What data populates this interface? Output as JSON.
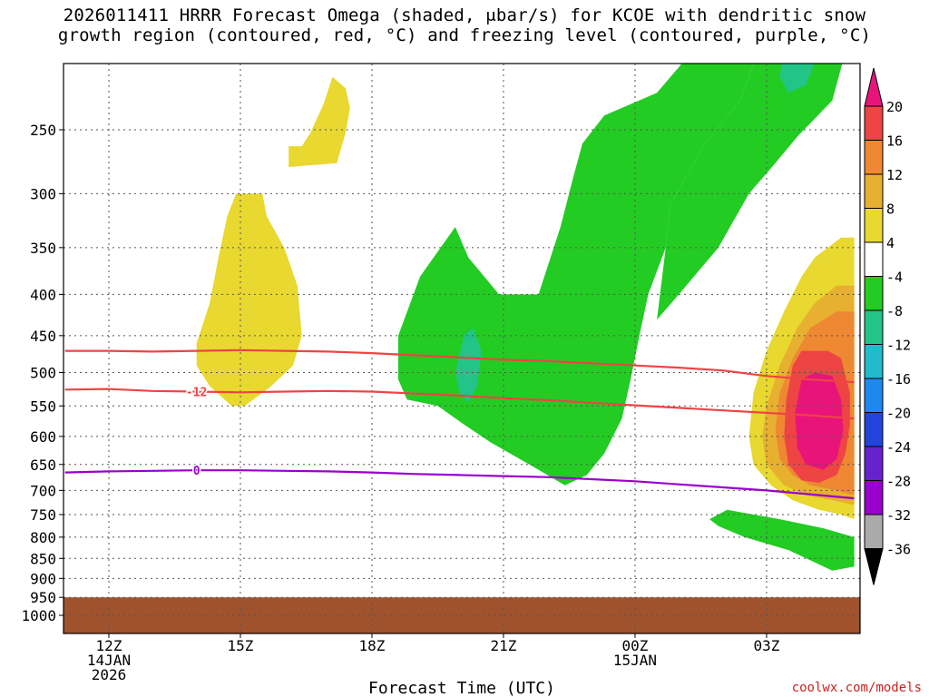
{
  "title": {
    "line1": "2026011411 HRRR Forecast Omega (shaded, μbar/s) for KCOE with dendritic snow",
    "line2": "growth region (contoured, red, °C) and freezing level (contoured, purple, °C)"
  },
  "credit": "coolwx.com/models",
  "chart_data": {
    "type": "heatmap",
    "title": "2026011411 HRRR Forecast Omega (shaded, μbar/s) for KCOE with dendritic snow growth region (contoured, red, °C) and freezing level (contoured, purple, °C)",
    "xlabel": "Forecast Time (UTC)",
    "ylabel": "",
    "y_axis": {
      "scale": "log-pressure",
      "units": "mb",
      "range": [
        1000,
        200
      ],
      "reversed": true
    },
    "x_axis": {
      "units": "hours (forecast time)",
      "range": [
        11,
        29
      ]
    },
    "yticks": [
      250,
      300,
      350,
      400,
      450,
      500,
      550,
      600,
      650,
      700,
      750,
      800,
      850,
      900,
      950,
      1000
    ],
    "xticks": [
      {
        "hour": 12,
        "lines": [
          "12Z",
          "14JAN",
          "2026"
        ]
      },
      {
        "hour": 15,
        "lines": [
          "15Z"
        ]
      },
      {
        "hour": 18,
        "lines": [
          "18Z"
        ]
      },
      {
        "hour": 21,
        "lines": [
          "21Z"
        ]
      },
      {
        "hour": 24,
        "lines": [
          "00Z",
          "15JAN"
        ]
      },
      {
        "hour": 27,
        "lines": [
          "03Z"
        ]
      }
    ],
    "grid": true,
    "ground_below_mb": 950,
    "ground_color": "#a0522d",
    "colorbar": {
      "labels": [
        "20",
        "16",
        "12",
        "8",
        "4",
        "-4",
        "-8",
        "-12",
        "-16",
        "-20",
        "-24",
        "-28",
        "-32",
        "-36"
      ],
      "bins": [
        {
          "color": "#e8147a"
        },
        {
          "color": "#ee4444"
        },
        {
          "color": "#ee8833"
        },
        {
          "color": "#e8b030"
        },
        {
          "color": "#e8d830"
        },
        {
          "color": "#ffffff"
        },
        {
          "color": "#22cc22"
        },
        {
          "color": "#22c488"
        },
        {
          "color": "#22bbcc"
        },
        {
          "color": "#1e88ee"
        },
        {
          "color": "#2244dd"
        },
        {
          "color": "#6622cc"
        },
        {
          "color": "#9900cc"
        },
        {
          "color": "#aaaaaa"
        },
        {
          "color": "#000000"
        }
      ]
    },
    "shaded_regions": [
      {
        "name": "rise-green-main",
        "omega": -4,
        "color": "#22cc22",
        "points": [
          [
            18.6,
            450
          ],
          [
            19.1,
            380
          ],
          [
            19.9,
            330
          ],
          [
            20.2,
            360
          ],
          [
            20.9,
            400
          ],
          [
            21.8,
            400
          ],
          [
            22.3,
            330
          ],
          [
            22.6,
            285
          ],
          [
            22.8,
            260
          ],
          [
            23.3,
            240
          ],
          [
            24.5,
            225
          ],
          [
            25.3,
            200
          ],
          [
            26.8,
            200
          ],
          [
            26.4,
            230
          ],
          [
            25.6,
            260
          ],
          [
            24.8,
            310
          ],
          [
            24.7,
            350
          ],
          [
            24.3,
            400
          ],
          [
            24.1,
            450
          ],
          [
            23.9,
            510
          ],
          [
            23.7,
            570
          ],
          [
            23.3,
            630
          ],
          [
            22.9,
            670
          ],
          [
            22.4,
            690
          ],
          [
            21.8,
            660
          ],
          [
            20.7,
            610
          ],
          [
            20.1,
            580
          ],
          [
            19.5,
            550
          ],
          [
            18.8,
            540
          ],
          [
            18.6,
            510
          ]
        ]
      },
      {
        "name": "rise-green-upper",
        "omega": -4,
        "color": "#22cc22",
        "points": [
          [
            26.8,
            200
          ],
          [
            28.8,
            200
          ],
          [
            28.5,
            230
          ],
          [
            27.7,
            255
          ],
          [
            27.2,
            275
          ],
          [
            26.6,
            300
          ],
          [
            25.9,
            350
          ],
          [
            25.0,
            400
          ],
          [
            24.5,
            430
          ],
          [
            24.7,
            350
          ],
          [
            24.8,
            310
          ],
          [
            25.6,
            260
          ],
          [
            26.4,
            230
          ]
        ]
      },
      {
        "name": "rise-teal-a",
        "omega": -8,
        "color": "#22c488",
        "points": [
          [
            20.1,
            450
          ],
          [
            20.3,
            440
          ],
          [
            20.5,
            470
          ],
          [
            20.4,
            520
          ],
          [
            20.2,
            545
          ],
          [
            20.0,
            530
          ],
          [
            19.9,
            500
          ]
        ]
      },
      {
        "name": "rise-teal-b",
        "omega": -8,
        "color": "#22c488",
        "points": [
          [
            27.4,
            200
          ],
          [
            28.2,
            200
          ],
          [
            27.9,
            220
          ],
          [
            27.5,
            225
          ],
          [
            27.3,
            215
          ]
        ]
      },
      {
        "name": "rise-green-lower",
        "omega": -4,
        "color": "#22cc22",
        "points": [
          [
            25.7,
            760
          ],
          [
            26.1,
            740
          ],
          [
            27.3,
            760
          ],
          [
            28.3,
            780
          ],
          [
            29.0,
            800
          ],
          [
            29.0,
            870
          ],
          [
            28.5,
            880
          ],
          [
            27.5,
            830
          ],
          [
            26.5,
            800
          ],
          [
            25.9,
            775
          ]
        ]
      },
      {
        "name": "sink-yellow-a",
        "omega": 4,
        "color": "#e8d830",
        "points": [
          [
            14.8,
            550
          ],
          [
            14.3,
            520
          ],
          [
            14.0,
            490
          ],
          [
            14.0,
            460
          ],
          [
            14.3,
            410
          ],
          [
            14.5,
            360
          ],
          [
            14.7,
            320
          ],
          [
            14.9,
            300
          ],
          [
            15.5,
            300
          ],
          [
            15.6,
            320
          ],
          [
            16.0,
            350
          ],
          [
            16.3,
            390
          ],
          [
            16.4,
            450
          ],
          [
            16.2,
            490
          ],
          [
            15.7,
            520
          ],
          [
            15.1,
            550
          ]
        ]
      },
      {
        "name": "sink-yellow-b",
        "omega": 4,
        "color": "#e8d830",
        "points": [
          [
            16.1,
            262
          ],
          [
            16.4,
            262
          ],
          [
            16.6,
            252
          ],
          [
            16.9,
            232
          ],
          [
            17.1,
            215
          ],
          [
            17.4,
            222
          ],
          [
            17.5,
            235
          ],
          [
            17.4,
            252
          ],
          [
            17.2,
            275
          ],
          [
            16.1,
            278
          ]
        ]
      },
      {
        "name": "sink-yellow-c",
        "omega": 4,
        "color": "#e8d830",
        "points": [
          [
            29.0,
            340
          ],
          [
            28.7,
            340
          ],
          [
            28.1,
            360
          ],
          [
            27.8,
            380
          ],
          [
            27.4,
            420
          ],
          [
            27.0,
            470
          ],
          [
            26.7,
            530
          ],
          [
            26.6,
            600
          ],
          [
            26.7,
            650
          ],
          [
            27.1,
            690
          ],
          [
            27.6,
            720
          ],
          [
            28.2,
            740
          ],
          [
            28.7,
            750
          ],
          [
            29.0,
            760
          ]
        ]
      },
      {
        "name": "sink-gold",
        "omega": 8,
        "color": "#e8b030",
        "points": [
          [
            29.0,
            390
          ],
          [
            28.6,
            390
          ],
          [
            28.1,
            410
          ],
          [
            27.7,
            440
          ],
          [
            27.3,
            490
          ],
          [
            27.0,
            550
          ],
          [
            26.9,
            600
          ],
          [
            27.0,
            650
          ],
          [
            27.4,
            690
          ],
          [
            27.9,
            710
          ],
          [
            28.5,
            720
          ],
          [
            29.0,
            730
          ]
        ]
      },
      {
        "name": "sink-orange",
        "omega": 12,
        "color": "#ee8833",
        "points": [
          [
            29.0,
            420
          ],
          [
            28.6,
            420
          ],
          [
            28.0,
            440
          ],
          [
            27.6,
            480
          ],
          [
            27.3,
            530
          ],
          [
            27.2,
            590
          ],
          [
            27.3,
            640
          ],
          [
            27.6,
            670
          ],
          [
            28.0,
            690
          ],
          [
            28.6,
            700
          ],
          [
            29.0,
            710
          ]
        ]
      },
      {
        "name": "sink-red",
        "omega": 16,
        "color": "#ee4444",
        "points": [
          [
            28.7,
            480
          ],
          [
            28.4,
            470
          ],
          [
            27.8,
            470
          ],
          [
            27.6,
            490
          ],
          [
            27.45,
            540
          ],
          [
            27.4,
            600
          ],
          [
            27.5,
            650
          ],
          [
            27.8,
            680
          ],
          [
            28.2,
            685
          ],
          [
            28.6,
            670
          ],
          [
            28.8,
            630
          ],
          [
            28.9,
            580
          ],
          [
            28.9,
            530
          ]
        ]
      },
      {
        "name": "sink-magenta",
        "omega": 20,
        "color": "#e8147a",
        "points": [
          [
            28.1,
            500
          ],
          [
            27.8,
            510
          ],
          [
            27.65,
            560
          ],
          [
            27.7,
            620
          ],
          [
            27.9,
            650
          ],
          [
            28.3,
            660
          ],
          [
            28.6,
            640
          ],
          [
            28.75,
            590
          ],
          [
            28.7,
            540
          ],
          [
            28.5,
            505
          ]
        ]
      }
    ],
    "contours": [
      {
        "name": "dgz-top",
        "label": "",
        "color": "#ee4444",
        "points": [
          [
            11,
            470
          ],
          [
            12,
            470
          ],
          [
            13,
            471
          ],
          [
            14,
            470
          ],
          [
            15,
            469
          ],
          [
            16,
            470
          ],
          [
            17,
            471
          ],
          [
            18,
            473
          ],
          [
            19,
            476
          ],
          [
            20,
            479
          ],
          [
            21,
            482
          ],
          [
            22,
            484
          ],
          [
            23,
            487
          ],
          [
            24,
            490
          ],
          [
            25,
            493
          ],
          [
            26,
            497
          ],
          [
            27,
            505
          ],
          [
            28,
            510
          ],
          [
            29,
            514
          ]
        ]
      },
      {
        "name": "dgz-bottom",
        "label": "-12",
        "label_at": 14,
        "color": "#ee4444",
        "points": [
          [
            11,
            525
          ],
          [
            12,
            524
          ],
          [
            13,
            527
          ],
          [
            14,
            528
          ],
          [
            15,
            529
          ],
          [
            16,
            528
          ],
          [
            17,
            527
          ],
          [
            18,
            528
          ],
          [
            19,
            531
          ],
          [
            20,
            534
          ],
          [
            21,
            538
          ],
          [
            22,
            541
          ],
          [
            23,
            545
          ],
          [
            24,
            549
          ],
          [
            25,
            553
          ],
          [
            26,
            557
          ],
          [
            27,
            561
          ],
          [
            28,
            565
          ],
          [
            29,
            570
          ]
        ]
      },
      {
        "name": "freezing-level",
        "label": "0",
        "label_at": 14,
        "color": "#9900cc",
        "points": [
          [
            11,
            665
          ],
          [
            12,
            663
          ],
          [
            13,
            662
          ],
          [
            14,
            661
          ],
          [
            15,
            661
          ],
          [
            16,
            662
          ],
          [
            17,
            663
          ],
          [
            18,
            665
          ],
          [
            19,
            668
          ],
          [
            20,
            670
          ],
          [
            21,
            672
          ],
          [
            22,
            674
          ],
          [
            23,
            678
          ],
          [
            24,
            682
          ],
          [
            25,
            688
          ],
          [
            26,
            694
          ],
          [
            27,
            700
          ],
          [
            28,
            708
          ],
          [
            29,
            716
          ]
        ]
      }
    ]
  }
}
